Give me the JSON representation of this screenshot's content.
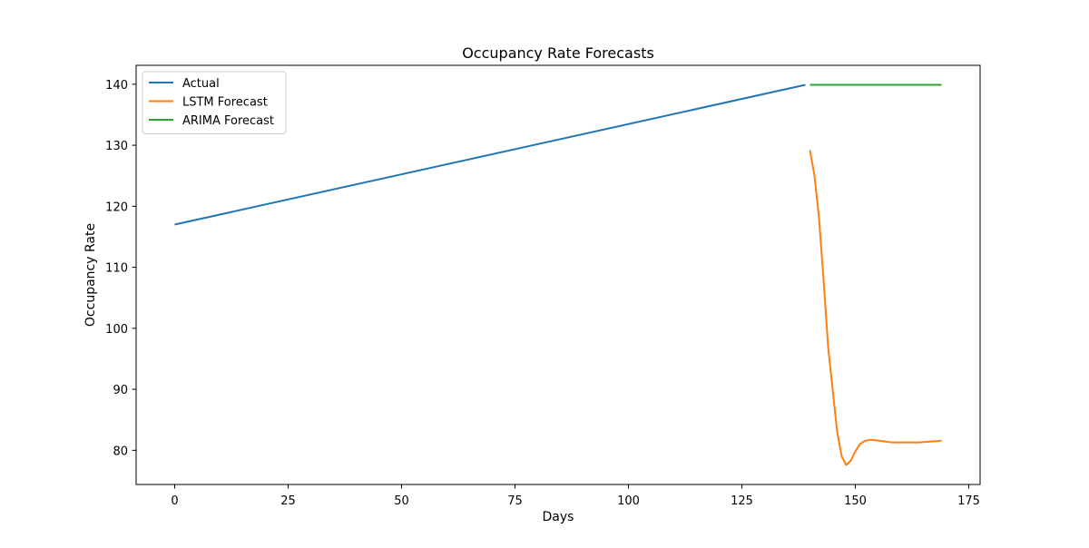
{
  "chart_data": {
    "type": "line",
    "title": "Occupancy Rate Forecasts",
    "xlabel": "Days",
    "ylabel": "Occupancy Rate",
    "xlim": [
      -8.5,
      177.5
    ],
    "ylim": [
      74.4,
      143.1
    ],
    "xticks": [
      0,
      25,
      50,
      75,
      100,
      125,
      150,
      175
    ],
    "yticks": [
      80,
      90,
      100,
      110,
      120,
      130,
      140
    ],
    "grid": false,
    "legend_position": "upper-left",
    "series": [
      {
        "name": "Actual",
        "color": "#1f77b4",
        "x": [
          0,
          139
        ],
        "y": [
          117.0,
          139.9
        ]
      },
      {
        "name": "LSTM Forecast",
        "color": "#ff7f0e",
        "x": [
          140,
          141,
          142,
          143,
          144,
          145,
          146,
          147,
          148,
          149,
          150,
          151,
          152,
          153,
          154,
          155,
          156,
          157,
          158,
          159,
          160,
          162,
          164,
          166,
          168,
          169
        ],
        "y": [
          129.2,
          125.0,
          118.0,
          108.0,
          97.0,
          90.0,
          83.0,
          79.0,
          77.6,
          78.3,
          79.8,
          81.0,
          81.5,
          81.7,
          81.7,
          81.6,
          81.5,
          81.4,
          81.3,
          81.3,
          81.3,
          81.3,
          81.3,
          81.4,
          81.5,
          81.6
        ]
      },
      {
        "name": "ARIMA Forecast",
        "color": "#2ca02c",
        "x": [
          140,
          169
        ],
        "y": [
          139.9,
          139.9
        ]
      }
    ]
  }
}
